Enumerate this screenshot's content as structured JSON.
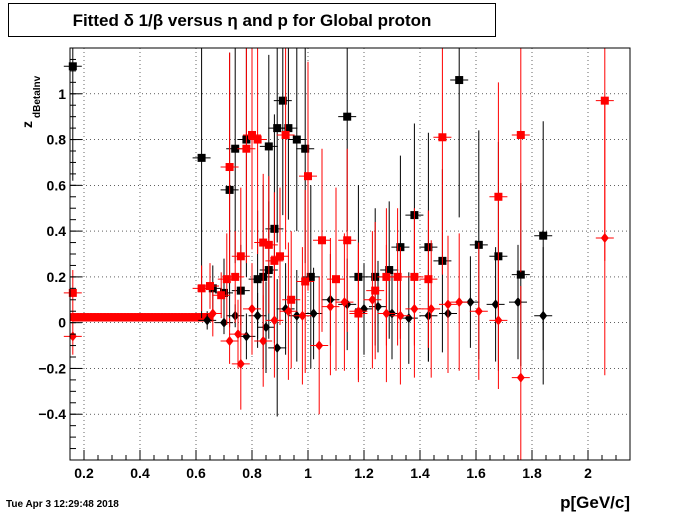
{
  "title": "Fitted δ 1/β versus η and p for Global proton",
  "ylabel_main": "z",
  "ylabel_sub": "dBetaInv",
  "xlabel": "p[GeV/c]",
  "datestamp": "Tue Apr  3 12:29:48 2018",
  "colors": {
    "black_series": "#000000",
    "red_series": "#ff0000"
  },
  "chart_data": {
    "type": "scatter",
    "xlim": [
      0.15,
      2.15
    ],
    "ylim": [
      -0.6,
      1.2
    ],
    "grid": true,
    "x_ticks": [
      0.2,
      0.4,
      0.6,
      0.8,
      1,
      1.2,
      1.4,
      1.6,
      1.8,
      2
    ],
    "x_tick_labels": [
      "0.2",
      "0.4",
      "0.6",
      "0.8",
      "1",
      "1.2",
      "1.4",
      "1.6",
      "1.8",
      "2"
    ],
    "y_ticks": [
      -0.4,
      -0.2,
      0,
      0.2,
      0.4,
      0.6,
      0.8,
      1
    ],
    "y_tick_labels": [
      "−0.4",
      "−0.2",
      "0",
      "0.2",
      "0.4",
      "0.6",
      "0.8",
      "1"
    ],
    "series": [
      {
        "color": "#000000",
        "marker": "square",
        "points": [
          {
            "x": 0.16,
            "y": 1.12,
            "e": 0.5
          },
          {
            "x": 0.62,
            "y": 0.72,
            "e": 0.7
          },
          {
            "x": 0.72,
            "y": 0.58,
            "e": 0.6
          },
          {
            "x": 0.74,
            "y": 0.76,
            "e": 0.5
          },
          {
            "x": 0.78,
            "y": 0.8,
            "e": 0.6
          },
          {
            "x": 0.86,
            "y": 0.77,
            "e": 0.4
          },
          {
            "x": 0.89,
            "y": 0.85,
            "e": 0.5
          },
          {
            "x": 0.91,
            "y": 0.97,
            "e": 0.5
          },
          {
            "x": 0.93,
            "y": 0.85,
            "e": 0.4
          },
          {
            "x": 0.96,
            "y": 0.8,
            "e": 0.4
          },
          {
            "x": 0.99,
            "y": 0.76,
            "e": 0.5
          },
          {
            "x": 0.88,
            "y": 0.41,
            "e": 0.5
          },
          {
            "x": 0.84,
            "y": 0.2,
            "e": 0.4
          },
          {
            "x": 0.82,
            "y": 0.19,
            "e": 0.3
          },
          {
            "x": 0.86,
            "y": 0.23,
            "e": 0.3
          },
          {
            "x": 1.01,
            "y": 0.2,
            "e": 0.4
          },
          {
            "x": 1.14,
            "y": 0.9,
            "e": 0.5
          },
          {
            "x": 1.18,
            "y": 0.2,
            "e": 0.4
          },
          {
            "x": 1.24,
            "y": 0.2,
            "e": 0.3
          },
          {
            "x": 1.29,
            "y": 0.23,
            "e": 0.3
          },
          {
            "x": 1.33,
            "y": 0.33,
            "e": 0.4
          },
          {
            "x": 1.38,
            "y": 0.47,
            "e": 0.4
          },
          {
            "x": 1.43,
            "y": 0.33,
            "e": 0.5
          },
          {
            "x": 1.48,
            "y": 0.27,
            "e": 0.4
          },
          {
            "x": 1.54,
            "y": 1.06,
            "e": 0.6
          },
          {
            "x": 1.61,
            "y": 0.34,
            "e": 0.5
          },
          {
            "x": 1.68,
            "y": 0.29,
            "e": 0.5
          },
          {
            "x": 1.76,
            "y": 0.21,
            "e": 0.4
          },
          {
            "x": 1.84,
            "y": 0.38,
            "e": 0.5
          },
          {
            "x": 0.66,
            "y": 0.15,
            "e": 0.1
          },
          {
            "x": 0.7,
            "y": 0.13,
            "e": 0.15
          },
          {
            "x": 0.76,
            "y": 0.14,
            "e": 0.2
          }
        ]
      },
      {
        "color": "#000000",
        "marker": "diamond",
        "points": [
          {
            "x": 0.64,
            "y": 0.01,
            "e": 0.04
          },
          {
            "x": 0.7,
            "y": 0.0,
            "e": 0.05
          },
          {
            "x": 0.74,
            "y": 0.03,
            "e": 0.05
          },
          {
            "x": 0.78,
            "y": -0.06,
            "e": 0.1
          },
          {
            "x": 0.82,
            "y": 0.03,
            "e": 0.1
          },
          {
            "x": 0.85,
            "y": -0.02,
            "e": 0.2
          },
          {
            "x": 0.89,
            "y": -0.11,
            "e": 0.3
          },
          {
            "x": 0.92,
            "y": 0.06,
            "e": 0.2
          },
          {
            "x": 0.96,
            "y": 0.03,
            "e": 0.2
          },
          {
            "x": 1.02,
            "y": 0.04,
            "e": 0.2
          },
          {
            "x": 1.08,
            "y": 0.1,
            "e": 0.2
          },
          {
            "x": 1.14,
            "y": 0.08,
            "e": 0.2
          },
          {
            "x": 1.2,
            "y": 0.06,
            "e": 0.2
          },
          {
            "x": 1.25,
            "y": 0.07,
            "e": 0.2
          },
          {
            "x": 1.3,
            "y": 0.04,
            "e": 0.2
          },
          {
            "x": 1.36,
            "y": 0.02,
            "e": 0.2
          },
          {
            "x": 1.43,
            "y": 0.03,
            "e": 0.2
          },
          {
            "x": 1.5,
            "y": 0.04,
            "e": 0.2
          },
          {
            "x": 1.58,
            "y": 0.09,
            "e": 0.2
          },
          {
            "x": 1.67,
            "y": 0.08,
            "e": 0.25
          },
          {
            "x": 1.75,
            "y": 0.09,
            "e": 0.25
          },
          {
            "x": 1.84,
            "y": 0.03,
            "e": 0.3
          }
        ]
      },
      {
        "color": "#ff0000",
        "marker": "square",
        "points": [
          {
            "x": 0.16,
            "y": 0.13,
            "e": 0.1
          },
          {
            "x": 0.62,
            "y": 0.15,
            "e": 0.1
          },
          {
            "x": 0.65,
            "y": 0.16,
            "e": 0.1
          },
          {
            "x": 0.69,
            "y": 0.12,
            "e": 0.1
          },
          {
            "x": 0.71,
            "y": 0.19,
            "e": 0.2
          },
          {
            "x": 0.72,
            "y": 0.68,
            "e": 0.5
          },
          {
            "x": 0.74,
            "y": 0.2,
            "e": 0.2
          },
          {
            "x": 0.76,
            "y": 0.29,
            "e": 0.3
          },
          {
            "x": 0.78,
            "y": 0.76,
            "e": 0.5
          },
          {
            "x": 0.8,
            "y": 0.82,
            "e": 0.5
          },
          {
            "x": 0.82,
            "y": 0.8,
            "e": 0.5
          },
          {
            "x": 0.84,
            "y": 0.35,
            "e": 0.3
          },
          {
            "x": 0.86,
            "y": 0.34,
            "e": 0.3
          },
          {
            "x": 0.88,
            "y": 0.27,
            "e": 0.3
          },
          {
            "x": 0.9,
            "y": 0.29,
            "e": 0.3
          },
          {
            "x": 0.92,
            "y": 0.82,
            "e": 0.5
          },
          {
            "x": 0.94,
            "y": 0.1,
            "e": 0.3
          },
          {
            "x": 1.0,
            "y": 0.64,
            "e": 0.5
          },
          {
            "x": 0.99,
            "y": 0.18,
            "e": 0.4
          },
          {
            "x": 1.05,
            "y": 0.36,
            "e": 0.4
          },
          {
            "x": 1.1,
            "y": 0.19,
            "e": 0.4
          },
          {
            "x": 1.14,
            "y": 0.36,
            "e": 0.4
          },
          {
            "x": 1.18,
            "y": 0.04,
            "e": 0.3
          },
          {
            "x": 1.24,
            "y": 0.14,
            "e": 0.3
          },
          {
            "x": 1.28,
            "y": 0.2,
            "e": 0.3
          },
          {
            "x": 1.32,
            "y": 0.2,
            "e": 0.3
          },
          {
            "x": 1.38,
            "y": 0.2,
            "e": 0.3
          },
          {
            "x": 1.43,
            "y": 0.19,
            "e": 0.3
          },
          {
            "x": 1.48,
            "y": 0.81,
            "e": 0.6
          },
          {
            "x": 1.68,
            "y": 0.55,
            "e": 0.5
          },
          {
            "x": 1.76,
            "y": 0.82,
            "e": 0.6
          },
          {
            "x": 2.06,
            "y": 0.97,
            "e": 0.7
          }
        ]
      },
      {
        "color": "#ff0000",
        "marker": "diamond",
        "points": [
          {
            "x": 0.16,
            "y": -0.06,
            "e": 0.08
          },
          {
            "x": 0.66,
            "y": 0.04,
            "e": 0.1
          },
          {
            "x": 0.72,
            "y": -0.08,
            "e": 0.1
          },
          {
            "x": 0.75,
            "y": -0.05,
            "e": 0.15
          },
          {
            "x": 0.76,
            "y": -0.18,
            "e": 0.2
          },
          {
            "x": 0.8,
            "y": 0.06,
            "e": 0.2
          },
          {
            "x": 0.84,
            "y": -0.08,
            "e": 0.2
          },
          {
            "x": 0.88,
            "y": 0.01,
            "e": 0.25
          },
          {
            "x": 0.93,
            "y": 0.05,
            "e": 0.3
          },
          {
            "x": 0.98,
            "y": 0.03,
            "e": 0.3
          },
          {
            "x": 1.04,
            "y": -0.1,
            "e": 0.3
          },
          {
            "x": 1.08,
            "y": 0.07,
            "e": 0.3
          },
          {
            "x": 1.13,
            "y": 0.09,
            "e": 0.3
          },
          {
            "x": 1.18,
            "y": 0.05,
            "e": 0.3
          },
          {
            "x": 1.23,
            "y": 0.1,
            "e": 0.3
          },
          {
            "x": 1.28,
            "y": 0.04,
            "e": 0.3
          },
          {
            "x": 1.33,
            "y": 0.03,
            "e": 0.3
          },
          {
            "x": 1.38,
            "y": 0.06,
            "e": 0.3
          },
          {
            "x": 1.44,
            "y": 0.06,
            "e": 0.3
          },
          {
            "x": 1.5,
            "y": 0.08,
            "e": 0.3
          },
          {
            "x": 1.54,
            "y": 0.09,
            "e": 0.3
          },
          {
            "x": 1.61,
            "y": 0.05,
            "e": 0.3
          },
          {
            "x": 1.68,
            "y": 0.01,
            "e": 0.3
          },
          {
            "x": 1.76,
            "y": -0.24,
            "e": 0.4
          },
          {
            "x": 2.06,
            "y": 0.37,
            "e": 0.6
          }
        ]
      }
    ],
    "band": {
      "x_start": 0.16,
      "x_end": 0.66,
      "y": 0.02,
      "e": 0.015
    }
  }
}
